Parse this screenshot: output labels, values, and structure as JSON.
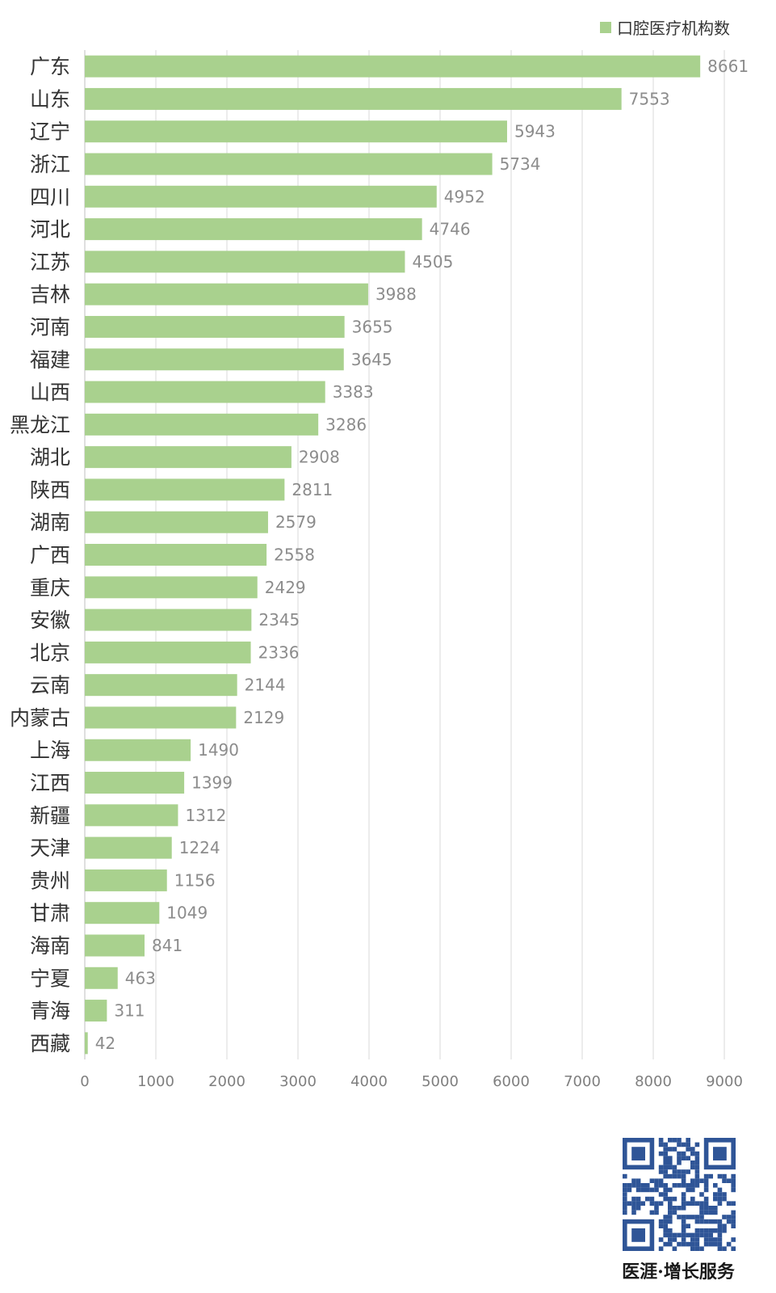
{
  "chart_data": {
    "type": "bar",
    "orientation": "horizontal",
    "legend": {
      "entries": [
        "口腔医疗机构数"
      ],
      "position": "top-right"
    },
    "series": [
      {
        "name": "口腔医疗机构数",
        "color": "#a9d18e",
        "values": [
          8661,
          7553,
          5943,
          5734,
          4952,
          4746,
          4505,
          3988,
          3655,
          3645,
          3383,
          3286,
          2908,
          2811,
          2579,
          2558,
          2429,
          2345,
          2336,
          2144,
          2129,
          1490,
          1399,
          1312,
          1224,
          1156,
          1049,
          841,
          463,
          311,
          42
        ]
      }
    ],
    "categories": [
      "广东",
      "山东",
      "辽宁",
      "浙江",
      "四川",
      "河北",
      "江苏",
      "吉林",
      "河南",
      "福建",
      "山西",
      "黑龙江",
      "湖北",
      "陕西",
      "湖南",
      "广西",
      "重庆",
      "安徽",
      "北京",
      "云南",
      "内蒙古",
      "上海",
      "江西",
      "新疆",
      "天津",
      "贵州",
      "甘肃",
      "海南",
      "宁夏",
      "青海",
      "西藏"
    ],
    "xlim": [
      0,
      9000
    ],
    "xticks": [
      0,
      1000,
      2000,
      3000,
      4000,
      5000,
      6000,
      7000,
      8000,
      9000
    ],
    "grid": "vertical",
    "title": "",
    "xlabel": "",
    "ylabel": ""
  },
  "footer": {
    "brand_text": "医涯·增长服务"
  },
  "colors": {
    "bar": "#a9d18e",
    "grid": "#d9d9d9",
    "axis": "#bfbfbf",
    "qr": "#2f5597"
  }
}
